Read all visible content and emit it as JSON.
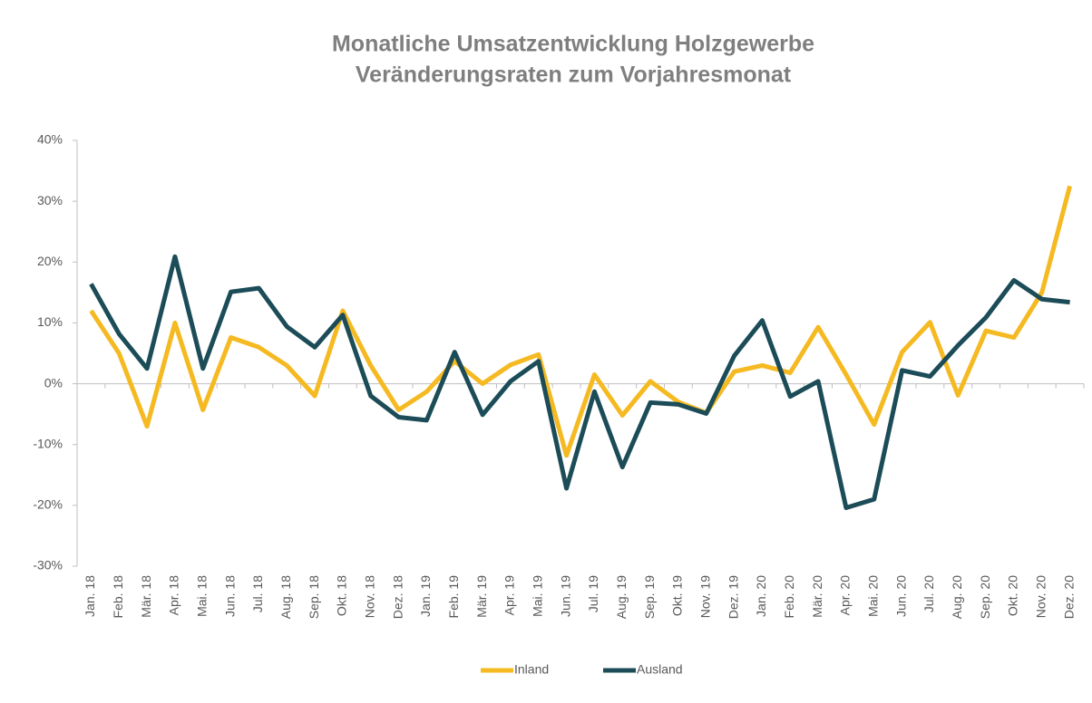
{
  "chart_data": {
    "type": "line",
    "title": "Monatliche Umsatzentwicklung Holzgewerbe",
    "subtitle": "Veränderungsraten zum Vorjahresmonat",
    "categories": [
      "Jan. 18",
      "Feb. 18",
      "Mär. 18",
      "Apr. 18",
      "Mai. 18",
      "Jun. 18",
      "Jul. 18",
      "Aug. 18",
      "Sep. 18",
      "Okt. 18",
      "Nov. 18",
      "Dez. 18",
      "Jan. 19",
      "Feb. 19",
      "Mär. 19",
      "Apr. 19",
      "Mai. 19",
      "Jun. 19",
      "Jul. 19",
      "Aug. 19",
      "Sep. 19",
      "Okt. 19",
      "Nov. 19",
      "Dez. 19",
      "Jan. 20",
      "Feb. 20",
      "Mär. 20",
      "Apr. 20",
      "Mai. 20",
      "Jun. 20",
      "Jul. 20",
      "Aug. 20",
      "Sep. 20",
      "Okt. 20",
      "Nov. 20",
      "Dez. 20"
    ],
    "series": [
      {
        "name": "Inland",
        "color": "#f5b921",
        "values": [
          12,
          5,
          -7,
          10,
          -4.3,
          7.6,
          6,
          3,
          -2,
          12,
          3,
          -4.3,
          -1.3,
          3.7,
          0,
          3.1,
          4.8,
          -11.8,
          1.5,
          -5.2,
          0.4,
          -3,
          -4.8,
          2,
          3,
          1.8,
          9.3,
          1.5,
          -6.7,
          5.2,
          10.1,
          -1.9,
          8.7,
          7.6,
          15,
          32.5
        ]
      },
      {
        "name": "Ausland",
        "color": "#1b4c57",
        "values": [
          16.4,
          8.2,
          2.5,
          20.9,
          2.5,
          15.1,
          15.7,
          9.4,
          6,
          11.3,
          -2,
          -5.5,
          -6,
          5.2,
          -5.1,
          0.4,
          3.7,
          -17.2,
          -1.3,
          -13.7,
          -3.1,
          -3.4,
          -4.9,
          4.6,
          10.4,
          -2.1,
          0.4,
          -20.4,
          -19,
          2.2,
          1.2,
          6.3,
          10.9,
          17,
          13.9,
          13.4
        ]
      }
    ],
    "ylim": [
      -30,
      40
    ],
    "yticks": [
      {
        "value": -30,
        "label": "-30%"
      },
      {
        "value": -20,
        "label": "-20%"
      },
      {
        "value": -10,
        "label": "-10%"
      },
      {
        "value": 0,
        "label": "0%"
      },
      {
        "value": 10,
        "label": "10%"
      },
      {
        "value": 20,
        "label": "20%"
      },
      {
        "value": 30,
        "label": "30%"
      },
      {
        "value": 40,
        "label": "40%"
      }
    ],
    "legend": "bottom"
  }
}
